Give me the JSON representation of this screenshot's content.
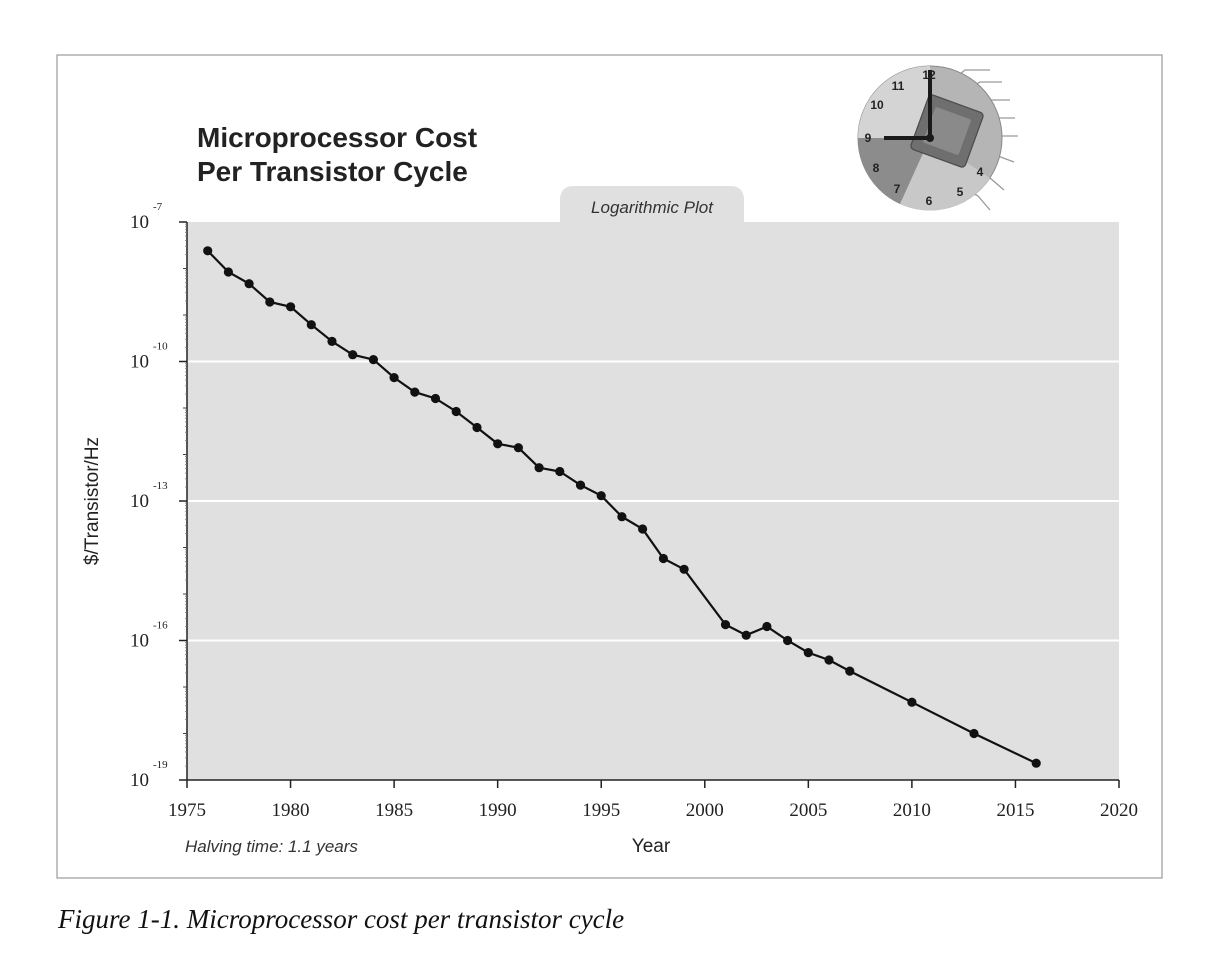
{
  "caption": "Figure 1-1. Microprocessor cost per transistor cycle",
  "chart_data": {
    "type": "line",
    "title_lines": [
      "Microprocessor Cost",
      "Per Transistor Cycle"
    ],
    "badge": "Logarithmic Plot",
    "xlabel": "Year",
    "ylabel": "$/Transistor/Hz",
    "note": "Halving time: 1.1 years",
    "xlim": [
      1975,
      2020
    ],
    "x_ticks": [
      "1975",
      "1980",
      "1985",
      "1990",
      "1995",
      "2000",
      "2005",
      "2010",
      "2015",
      "2020"
    ],
    "y_scale": "log",
    "y_exponent_range": [
      -19,
      -7
    ],
    "y_ticks": [
      {
        "base": "10",
        "exp": "-7"
      },
      {
        "base": "10",
        "exp": "-10"
      },
      {
        "base": "10",
        "exp": "-13"
      },
      {
        "base": "10",
        "exp": "-16"
      },
      {
        "base": "10",
        "exp": "-19"
      }
    ],
    "grid": "horizontal",
    "series": [
      {
        "points": [
          [
            1976,
            2.4e-08
          ],
          [
            1977,
            8.4e-09
          ],
          [
            1978,
            4.7e-09
          ],
          [
            1979,
            1.9e-09
          ],
          [
            1980,
            1.5e-09
          ],
          [
            1981,
            6.2e-10
          ],
          [
            1982,
            2.7e-10
          ],
          [
            1983,
            1.4e-10
          ],
          [
            1984,
            1.1e-10
          ],
          [
            1985,
            4.5e-11
          ],
          [
            1986,
            2.2e-11
          ],
          [
            1987,
            1.6e-11
          ],
          [
            1988,
            8.4e-12
          ],
          [
            1989,
            3.8e-12
          ],
          [
            1990,
            1.7e-12
          ],
          [
            1991,
            1.4e-12
          ],
          [
            1992,
            5.2e-13
          ],
          [
            1993,
            4.3e-13
          ],
          [
            1994,
            2.2e-13
          ],
          [
            1995,
            1.3e-13
          ],
          [
            1996,
            4.6e-14
          ],
          [
            1997,
            2.5e-14
          ],
          [
            1998,
            5.8e-15
          ],
          [
            1999,
            3.4e-15
          ],
          [
            2001,
            2.2e-16
          ],
          [
            2002,
            1.3e-16
          ],
          [
            2003,
            2e-16
          ],
          [
            2004,
            1e-16
          ],
          [
            2005,
            5.5e-17
          ],
          [
            2006,
            3.8e-17
          ],
          [
            2007,
            2.2e-17
          ],
          [
            2010,
            4.7e-18
          ],
          [
            2013,
            1e-18
          ],
          [
            2016,
            2.3e-19
          ]
        ]
      }
    ]
  },
  "clock_numbers": [
    "12",
    "11",
    "10",
    "9",
    "8",
    "7",
    "6",
    "5",
    "4"
  ]
}
